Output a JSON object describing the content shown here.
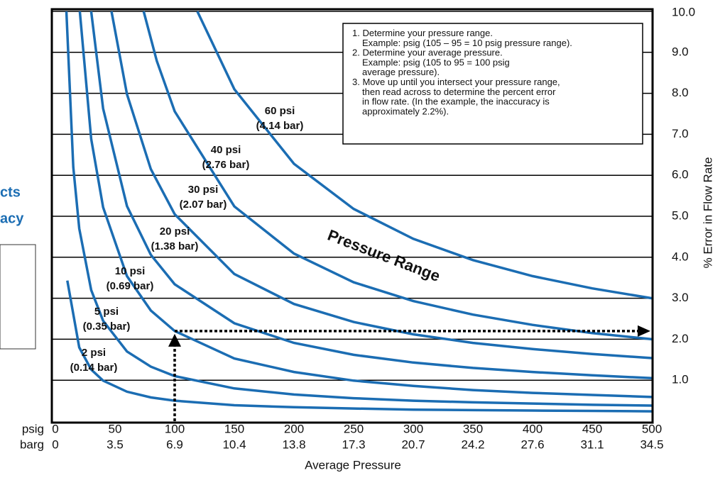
{
  "chart_data": {
    "type": "line",
    "x_label": "Average Pressure",
    "y_label": "% Error in Flow Rate",
    "overlay_text": "Pressure Range",
    "x_row_labels": [
      "psig",
      "barg"
    ],
    "xlim": [
      0,
      500
    ],
    "xticks": [
      0,
      50,
      100,
      150,
      200,
      250,
      300,
      350,
      400,
      450,
      500
    ],
    "x_secondary_labels": [
      "0",
      "3.5",
      "6.9",
      "10.4",
      "13.8",
      "17.3",
      "20.7",
      "24.2",
      "27.6",
      "31.1",
      "34.5"
    ],
    "ylim": [
      0,
      10
    ],
    "yticks": [
      {
        "value": 1,
        "label": "1.0"
      },
      {
        "value": 2,
        "label": "2.0"
      },
      {
        "value": 3,
        "label": "3.0"
      },
      {
        "value": 4,
        "label": "4.0"
      },
      {
        "value": 5,
        "label": "5.0"
      },
      {
        "value": 6,
        "label": "6.0"
      },
      {
        "value": 7,
        "label": "7.0"
      },
      {
        "value": 8,
        "label": "8.0"
      },
      {
        "value": 9,
        "label": "9.0"
      },
      {
        "value": 10,
        "label": "10.0"
      }
    ],
    "grid": true,
    "color": "#1b6db3",
    "example": {
      "x": 100,
      "y": 2.2
    },
    "series": [
      {
        "name": "2 psi",
        "bar_label": "(0.14 bar)",
        "x": [
          10,
          20,
          30,
          40,
          60,
          80,
          100,
          150,
          200,
          250,
          300,
          350,
          400,
          450,
          500
        ],
        "values": [
          3.43,
          1.8,
          1.26,
          0.99,
          0.72,
          0.58,
          0.5,
          0.39,
          0.34,
          0.31,
          0.28,
          0.27,
          0.26,
          0.25,
          0.24
        ]
      },
      {
        "name": "5 psi",
        "bar_label": "(0.35 bar)",
        "x": [
          9.2,
          15,
          20,
          30,
          40,
          60,
          80,
          100,
          150,
          200,
          250,
          300,
          350,
          400,
          450,
          500
        ],
        "values": [
          10,
          6.2,
          4.7,
          3.2,
          2.45,
          1.7,
          1.33,
          1.1,
          0.8,
          0.65,
          0.56,
          0.5,
          0.46,
          0.43,
          0.4,
          0.38
        ]
      },
      {
        "name": "10 psi",
        "bar_label": "(0.69 bar)",
        "x": [
          20.5,
          30,
          40,
          60,
          80,
          100,
          150,
          200,
          250,
          300,
          350,
          400,
          450,
          500
        ],
        "values": [
          10,
          6.89,
          5.22,
          3.54,
          2.7,
          2.2,
          1.53,
          1.2,
          0.99,
          0.86,
          0.76,
          0.69,
          0.64,
          0.59
        ]
      },
      {
        "name": "20 psi",
        "bar_label": "(1.38 bar)",
        "x": [
          30,
          40,
          60,
          80,
          100,
          150,
          200,
          250,
          300,
          350,
          400,
          450,
          500
        ],
        "values": [
          10,
          7.63,
          5.25,
          4.06,
          3.34,
          2.39,
          1.91,
          1.62,
          1.43,
          1.3,
          1.2,
          1.12,
          1.05
        ]
      },
      {
        "name": "30 psi",
        "bar_label": "(2.07 bar)",
        "x": [
          47,
          60,
          80,
          100,
          150,
          200,
          250,
          300,
          350,
          400,
          450,
          500
        ],
        "values": [
          10,
          7.98,
          6.15,
          5.05,
          3.59,
          2.86,
          2.42,
          2.12,
          1.91,
          1.76,
          1.64,
          1.54
        ]
      },
      {
        "name": "40 psi",
        "bar_label": "(2.76 bar)",
        "x": [
          74,
          85,
          100,
          150,
          200,
          250,
          300,
          350,
          400,
          450,
          500
        ],
        "values": [
          10,
          8.79,
          7.56,
          5.24,
          4.09,
          3.39,
          2.93,
          2.6,
          2.35,
          2.15,
          2
        ]
      },
      {
        "name": "60 psi",
        "bar_label": "(4.14 bar)",
        "x": [
          119,
          150,
          200,
          250,
          300,
          350,
          400,
          450,
          500
        ],
        "values": [
          10,
          8.1,
          6.28,
          5.18,
          4.45,
          3.93,
          3.54,
          3.24,
          3
        ]
      }
    ],
    "instructions": [
      [
        "1. Determine your pressure range.",
        "Example: psig (105 – 95 = 10 psig pressure range)."
      ],
      [
        "2. Determine your average pressure.",
        "Example: psig (105 to 95 = 100 psig",
        "average pressure)."
      ],
      [
        "3. Move up until you intersect your pressure range,",
        "then read across to determine the percent error",
        "in flow rate. (In the example, the inaccuracy is",
        "approximately 2.2%)."
      ]
    ],
    "side_fragments": [
      "cts",
      "acy"
    ]
  }
}
